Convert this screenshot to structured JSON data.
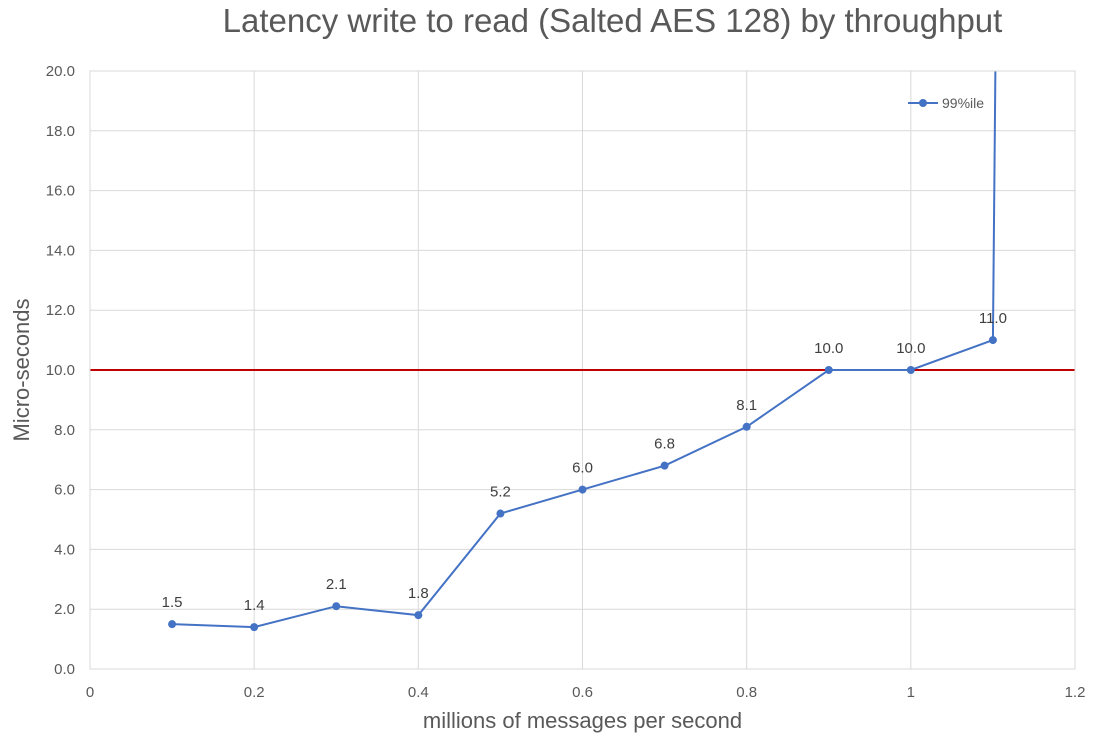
{
  "chart_data": {
    "type": "scatter",
    "title": "Latency write to read (Salted AES 128) by throughput",
    "xlabel": "millions of messages per second",
    "ylabel": "Micro-seconds",
    "xlim": [
      0,
      1.2
    ],
    "ylim": [
      0,
      20
    ],
    "x_ticks": [
      0,
      0.2,
      0.4,
      0.6,
      0.8,
      1,
      1.2
    ],
    "x_tick_labels": [
      "0",
      "0.2",
      "0.4",
      "0.6",
      "0.8",
      "1",
      "1.2"
    ],
    "y_ticks": [
      0,
      2,
      4,
      6,
      8,
      10,
      12,
      14,
      16,
      18,
      20
    ],
    "y_tick_labels": [
      "0.0",
      "2.0",
      "4.0",
      "6.0",
      "8.0",
      "10.0",
      "12.0",
      "14.0",
      "16.0",
      "18.0",
      "20.0"
    ],
    "grid": true,
    "legend_position": "top-right",
    "series": [
      {
        "name": "99%ile",
        "color": "#4472c4",
        "mode": "lines+markers",
        "x": [
          0.1,
          0.2,
          0.3,
          0.4,
          0.5,
          0.6,
          0.7,
          0.8,
          0.9,
          1.0,
          1.1
        ],
        "y": [
          1.5,
          1.4,
          2.1,
          1.8,
          5.2,
          6.0,
          6.8,
          8.1,
          10.0,
          10.0,
          11.0
        ],
        "data_labels": [
          "1.5",
          "1.4",
          "2.1",
          "1.8",
          "5.2",
          "6.0",
          "6.8",
          "8.1",
          "10.0",
          "10.0",
          "11.0"
        ],
        "continuation": {
          "x": [
            1.1,
            1.103
          ],
          "y": [
            11.0,
            20.0
          ]
        }
      }
    ],
    "reference_line": {
      "color": "#c00000",
      "y": 10.0
    }
  }
}
